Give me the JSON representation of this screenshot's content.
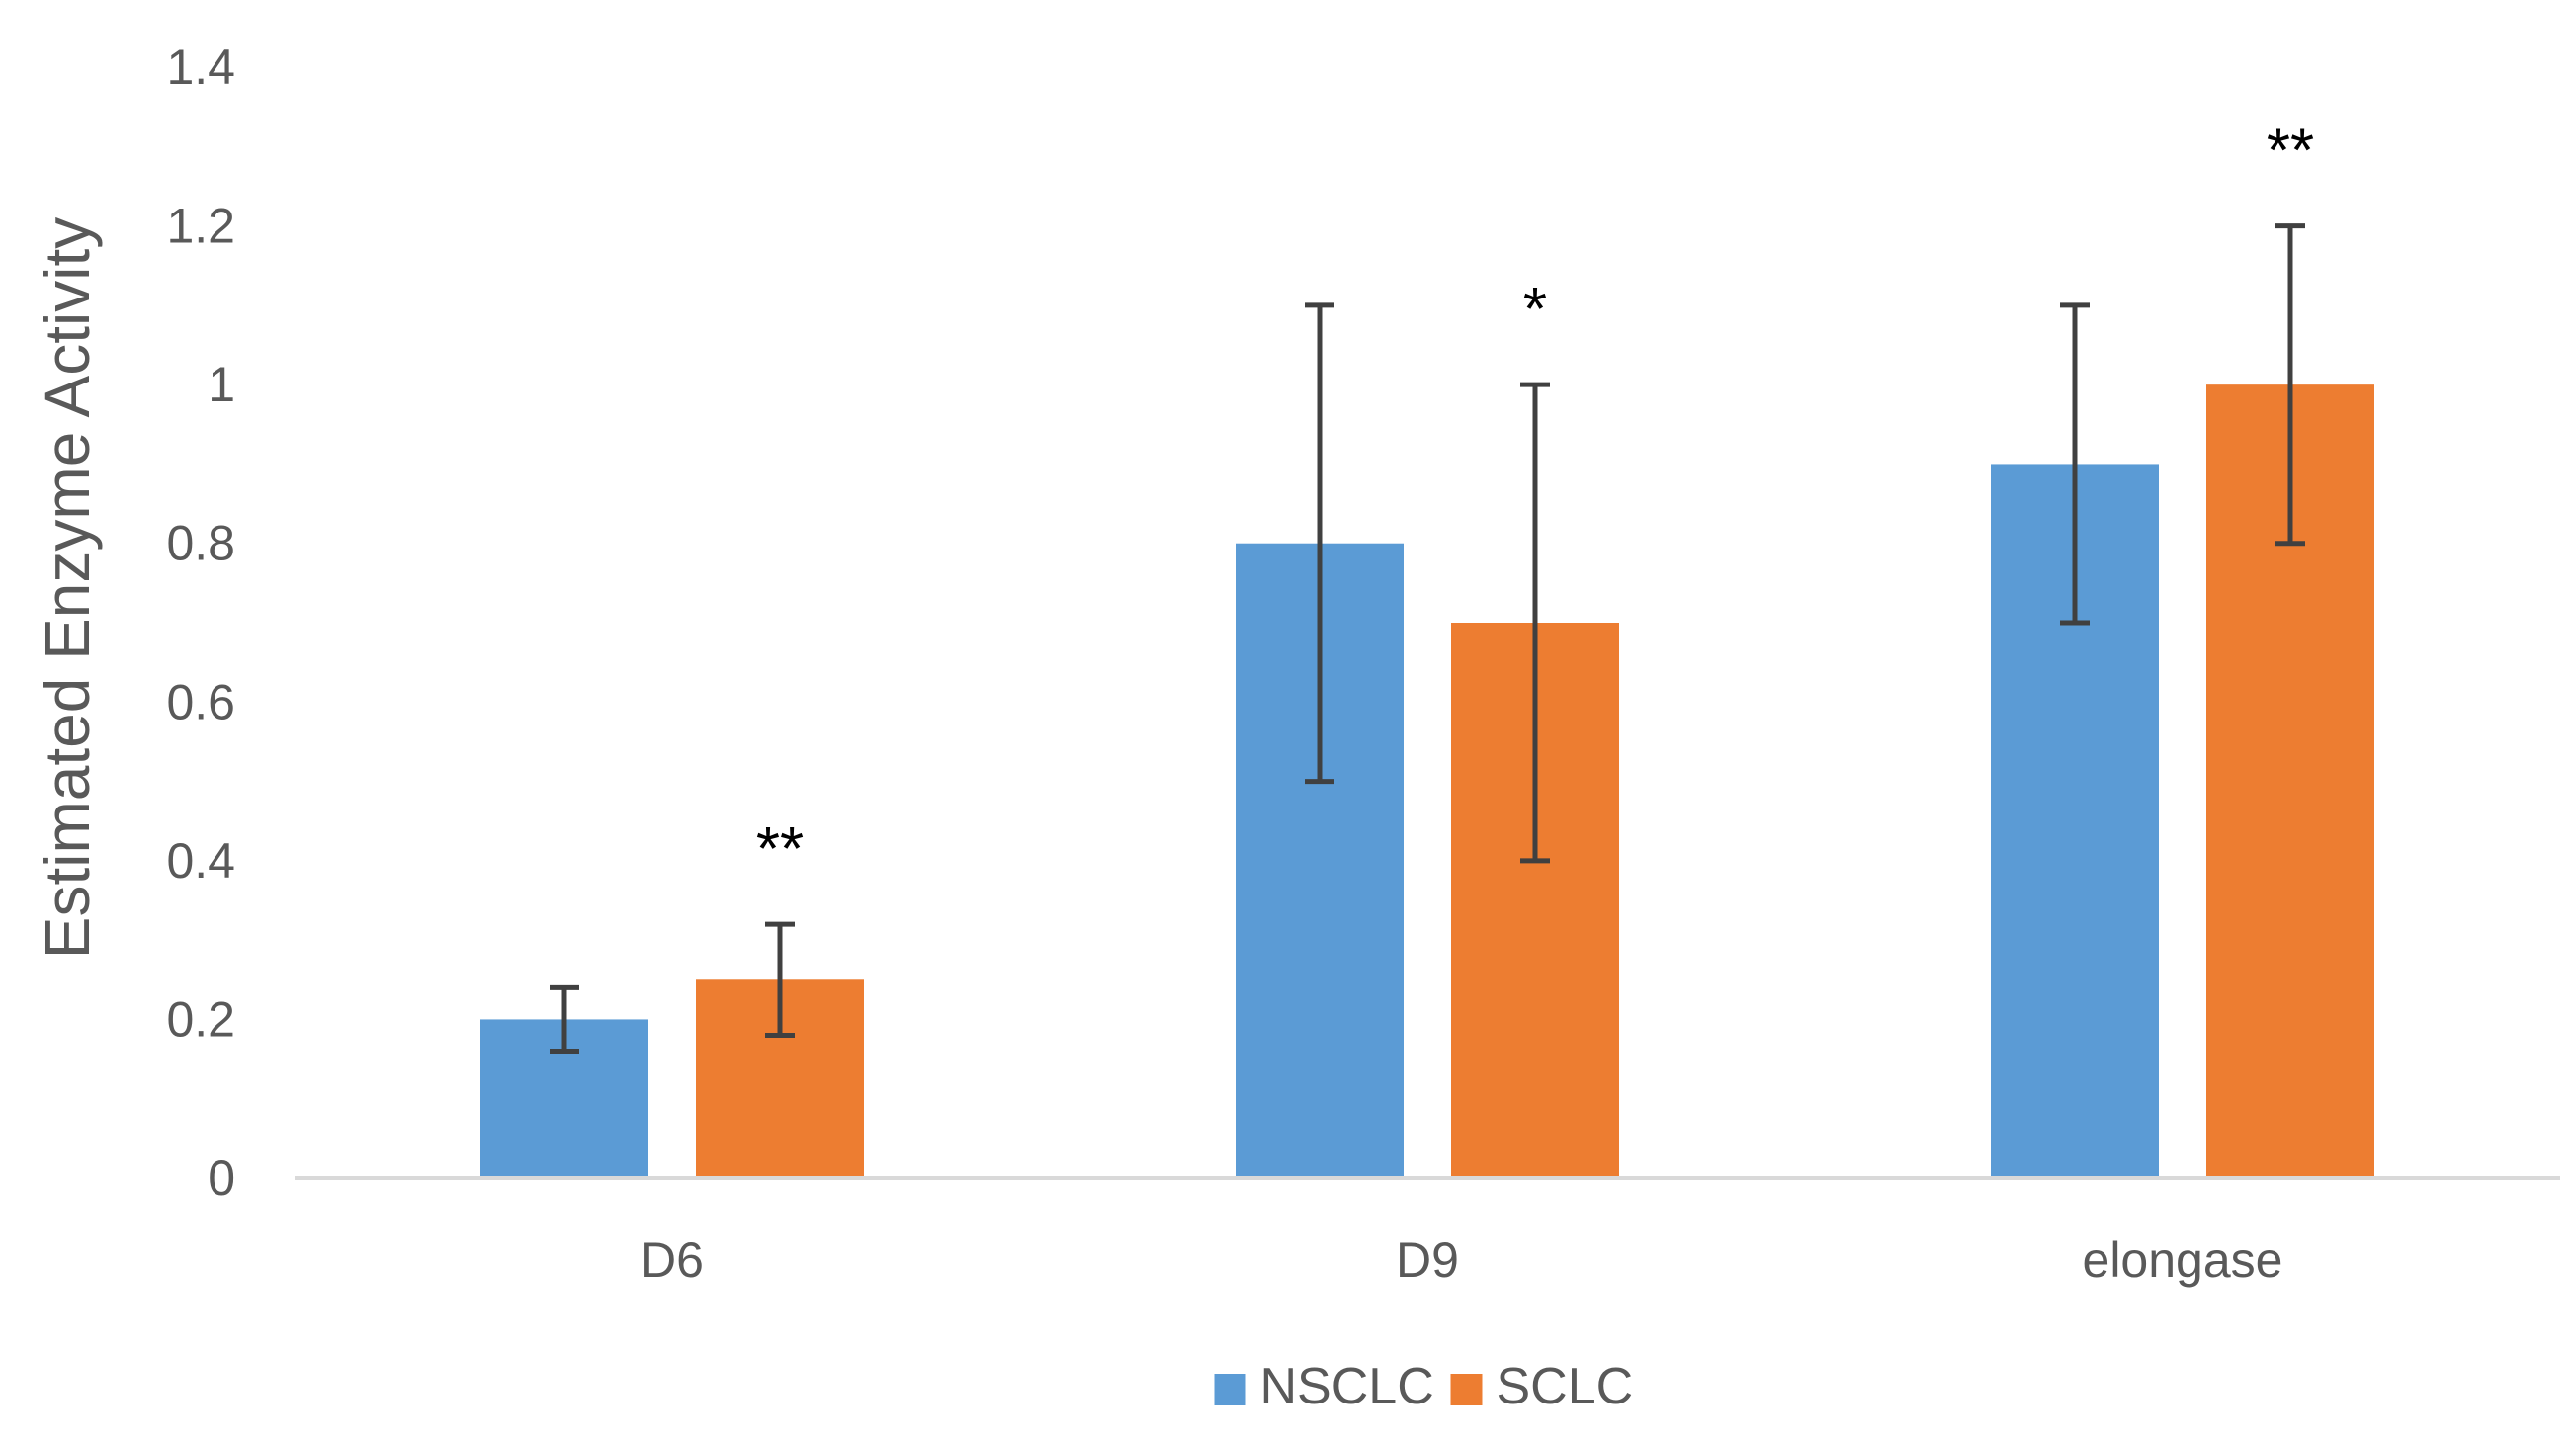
{
  "chart_data": {
    "type": "bar",
    "title": "",
    "xlabel": "",
    "ylabel": "Estimated Enzyme Activity",
    "ylim": [
      0,
      1.4
    ],
    "yticks": [
      0,
      0.2,
      0.4,
      0.6,
      0.8,
      1,
      1.2,
      1.4
    ],
    "ytick_labels": [
      "0",
      "0.2",
      "0.4",
      "0.6",
      "0.8",
      "1",
      "1.2",
      "1.4"
    ],
    "grid": false,
    "legend_position": "bottom",
    "categories": [
      "D6",
      "D9",
      "elongase"
    ],
    "series": [
      {
        "name": "NSCLC",
        "color": "#5B9BD5",
        "values": [
          0.2,
          0.8,
          0.9
        ],
        "error": [
          0.04,
          0.3,
          0.2
        ]
      },
      {
        "name": "SCLC",
        "color": "#ED7D31",
        "values": [
          0.25,
          0.7,
          1.0
        ],
        "error": [
          0.07,
          0.3,
          0.2
        ]
      }
    ],
    "annotations": [
      {
        "category": "D6",
        "series": "SCLC",
        "text": "**"
      },
      {
        "category": "D9",
        "series": "SCLC",
        "text": "*"
      },
      {
        "category": "elongase",
        "series": "SCLC",
        "text": "**"
      }
    ]
  }
}
